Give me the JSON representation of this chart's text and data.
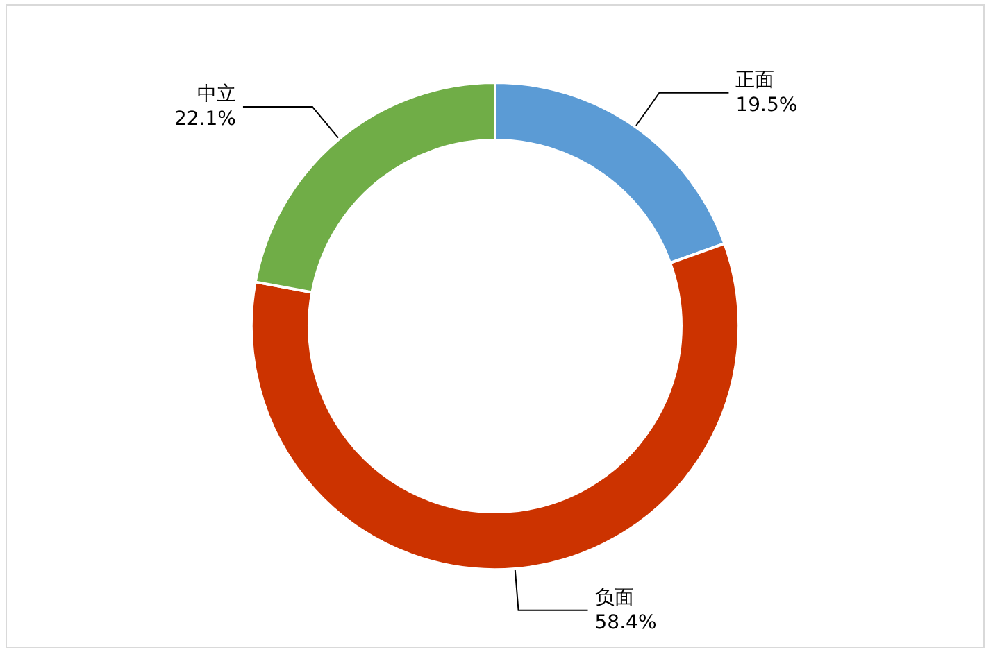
{
  "chart_data": {
    "type": "donut",
    "categories": [
      "正面",
      "负面",
      "中立"
    ],
    "values": [
      19.5,
      58.4,
      22.1
    ],
    "value_labels": [
      "19.5%",
      "58.4%",
      "22.1%"
    ],
    "colors": [
      "#5b9bd5",
      "#cc3300",
      "#70ad47"
    ],
    "legend": false
  }
}
